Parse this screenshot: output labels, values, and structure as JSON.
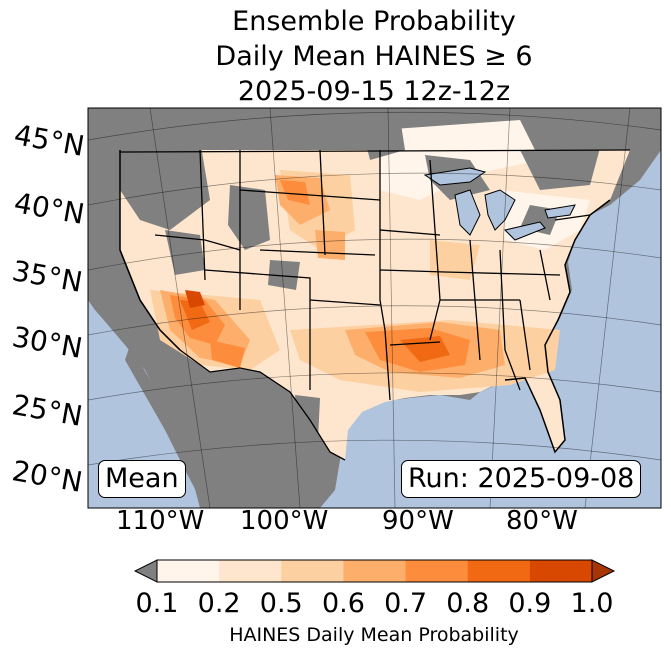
{
  "title": {
    "line1": "Ensemble Probability",
    "line2": "Daily Mean HAINES ≥ 6",
    "line3": "2025-09-15 12z-12z"
  },
  "map": {
    "lat_labels": [
      "45°N",
      "40°N",
      "35°N",
      "30°N",
      "25°N",
      "20°N"
    ],
    "lon_labels": [
      "110°W",
      "100°W",
      "90°W",
      "80°W"
    ],
    "mean_box": "Mean",
    "run_box": "Run: 2025-09-08",
    "colors": {
      "ocean": "#b0c4de",
      "no_data_land": "#808080",
      "border": "#000000"
    }
  },
  "colorbar": {
    "ticks": [
      "0.1",
      "0.2",
      "0.5",
      "0.6",
      "0.7",
      "0.8",
      "0.9",
      "1.0"
    ],
    "bins": [
      "#fff5eb",
      "#fee6ce",
      "#fdd0a2",
      "#fdae6b",
      "#fd8d3c",
      "#f16913",
      "#d94801"
    ],
    "under_color": "#808080",
    "over_color": "#a63603",
    "label": "HAINES Daily Mean Probability"
  }
}
